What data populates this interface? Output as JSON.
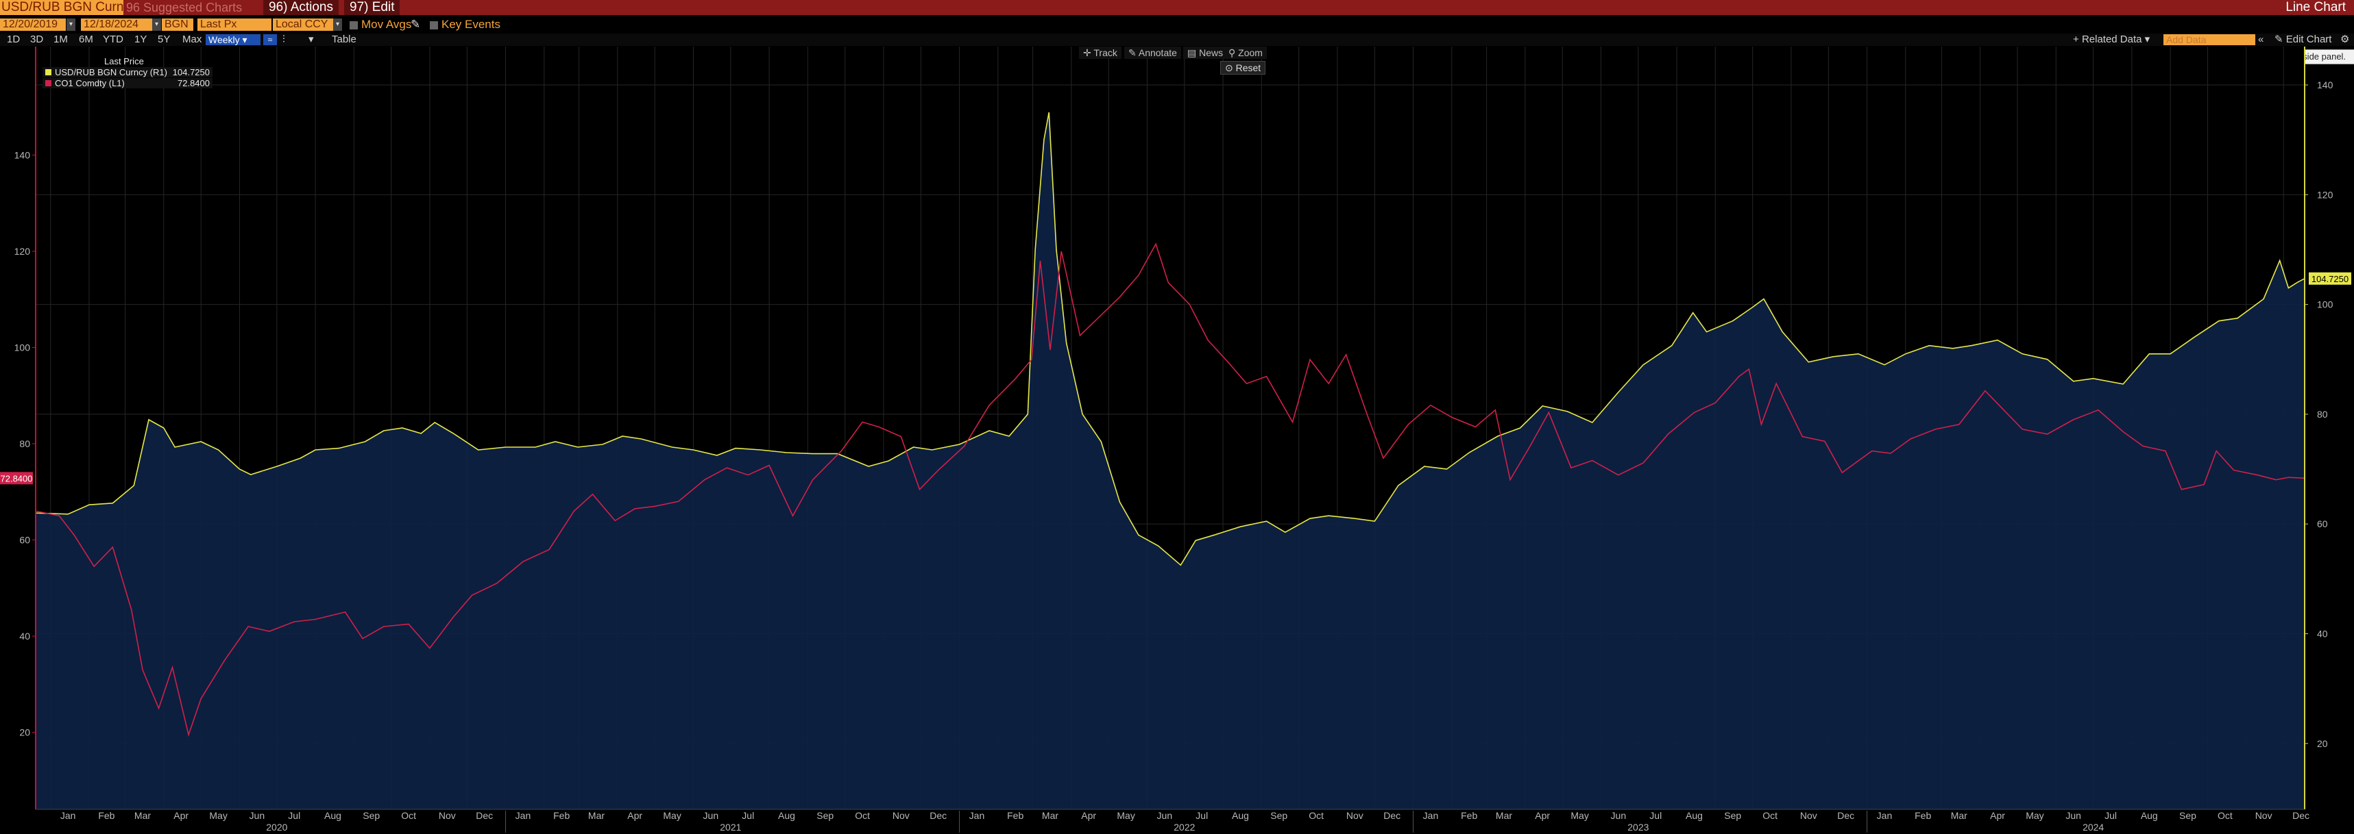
{
  "header": {
    "ticker": "USD/RUB BGN Curnc",
    "suggested_charts": "96 Suggested Charts",
    "actions": "96) Actions",
    "edit": "97) Edit",
    "view_title": "Line Chart"
  },
  "toolbar": {
    "start_date": "12/20/2019",
    "end_date": "12/18/2024",
    "source": "BGN",
    "field": "Last Px",
    "currency": "Local CCY",
    "mov_avgs": "Mov Avgs",
    "key_events": "Key Events",
    "periods": [
      "1D",
      "3D",
      "1M",
      "6M",
      "YTD",
      "1Y",
      "5Y",
      "Max"
    ],
    "frequency": "Weekly",
    "table": "Table",
    "related_data": "Related Data",
    "add_data_placeholder": "Add Data",
    "edit_chart": "Edit Chart",
    "tooltip": "Open the security/study side panel."
  },
  "chart_tools": {
    "track": "Track",
    "annotate": "Annotate",
    "news": "News",
    "zoom": "Zoom",
    "reset": "Reset"
  },
  "legend": {
    "header": "Last Price",
    "entries": [
      {
        "name": "USD/RUB BGN Curncy  (R1)",
        "value": "104.7250",
        "color": "#e8e84a"
      },
      {
        "name": "CO1 Comdty  (L1)",
        "value": "72.8400",
        "color": "#d0204a"
      }
    ]
  },
  "chart_data": {
    "type": "line",
    "y_left": {
      "ticks": [
        20,
        40,
        60,
        80,
        100,
        120,
        140
      ],
      "range": [
        4,
        158
      ],
      "last_label": "72.8400"
    },
    "y_right": {
      "ticks": [
        20,
        40,
        60,
        80,
        100,
        120,
        140
      ],
      "range": [
        8,
        143
      ],
      "last_label": "104.7250"
    },
    "months": [
      "Jan",
      "Feb",
      "Mar",
      "Apr",
      "May",
      "Jun",
      "Jul",
      "Aug",
      "Sep",
      "Oct",
      "Nov",
      "Dec",
      "Jan",
      "Feb",
      "Mar",
      "Apr",
      "May",
      "Jun",
      "Jul",
      "Aug",
      "Sep",
      "Oct",
      "Nov",
      "Dec",
      "Jan",
      "Feb",
      "Mar",
      "Apr",
      "May",
      "Jun",
      "Jul",
      "Aug",
      "Sep",
      "Oct",
      "Nov",
      "Dec",
      "Jan",
      "Feb",
      "Mar",
      "Apr",
      "May",
      "Jun",
      "Jul",
      "Aug",
      "Sep",
      "Oct",
      "Nov",
      "Dec",
      "Jan",
      "Feb",
      "Mar",
      "Apr",
      "May",
      "Jun",
      "Jul",
      "Aug",
      "Sep",
      "Oct",
      "Nov",
      "Dec"
    ],
    "years": [
      "2020",
      "2021",
      "2022",
      "2023",
      "2024"
    ],
    "x_range": [
      "2019-12-20",
      "2024-12-18"
    ],
    "series": [
      {
        "name": "USD/RUB BGN Curncy",
        "axis": "right",
        "color": "#e8e84a",
        "points": [
          [
            "2019-12-20",
            62.0
          ],
          [
            "2020-01-15",
            61.8
          ],
          [
            "2020-02-01",
            63.5
          ],
          [
            "2020-02-20",
            63.8
          ],
          [
            "2020-03-08",
            67.0
          ],
          [
            "2020-03-20",
            79.0
          ],
          [
            "2020-04-01",
            77.5
          ],
          [
            "2020-04-10",
            74.0
          ],
          [
            "2020-05-01",
            75.0
          ],
          [
            "2020-05-15",
            73.5
          ],
          [
            "2020-06-01",
            70.0
          ],
          [
            "2020-06-10",
            69.0
          ],
          [
            "2020-07-01",
            70.5
          ],
          [
            "2020-07-20",
            72.0
          ],
          [
            "2020-08-01",
            73.5
          ],
          [
            "2020-08-20",
            73.8
          ],
          [
            "2020-09-10",
            75.0
          ],
          [
            "2020-09-25",
            77.0
          ],
          [
            "2020-10-10",
            77.5
          ],
          [
            "2020-10-25",
            76.5
          ],
          [
            "2020-11-05",
            78.5
          ],
          [
            "2020-11-20",
            76.5
          ],
          [
            "2020-12-10",
            73.5
          ],
          [
            "2021-01-01",
            74.0
          ],
          [
            "2021-01-25",
            74.0
          ],
          [
            "2021-02-10",
            75.0
          ],
          [
            "2021-02-28",
            74.0
          ],
          [
            "2021-03-20",
            74.5
          ],
          [
            "2021-04-05",
            76.0
          ],
          [
            "2021-04-20",
            75.5
          ],
          [
            "2021-05-15",
            74.0
          ],
          [
            "2021-06-01",
            73.5
          ],
          [
            "2021-06-20",
            72.5
          ],
          [
            "2021-07-05",
            73.8
          ],
          [
            "2021-07-25",
            73.5
          ],
          [
            "2021-08-15",
            73.0
          ],
          [
            "2021-09-05",
            72.8
          ],
          [
            "2021-09-25",
            72.8
          ],
          [
            "2021-10-20",
            70.5
          ],
          [
            "2021-11-05",
            71.5
          ],
          [
            "2021-11-25",
            74.0
          ],
          [
            "2021-12-10",
            73.5
          ],
          [
            "2022-01-01",
            74.5
          ],
          [
            "2022-01-25",
            77.0
          ],
          [
            "2022-02-10",
            76.0
          ],
          [
            "2022-02-25",
            80.0
          ],
          [
            "2022-03-03",
            110.0
          ],
          [
            "2022-03-10",
            130.0
          ],
          [
            "2022-03-14",
            135.0
          ],
          [
            "2022-03-20",
            110.0
          ],
          [
            "2022-03-28",
            93.0
          ],
          [
            "2022-04-10",
            80.0
          ],
          [
            "2022-04-25",
            75.0
          ],
          [
            "2022-05-10",
            64.0
          ],
          [
            "2022-05-25",
            58.0
          ],
          [
            "2022-06-10",
            56.0
          ],
          [
            "2022-06-28",
            52.5
          ],
          [
            "2022-07-10",
            57.0
          ],
          [
            "2022-07-25",
            58.0
          ],
          [
            "2022-08-15",
            59.5
          ],
          [
            "2022-09-05",
            60.5
          ],
          [
            "2022-09-20",
            58.5
          ],
          [
            "2022-10-10",
            61.0
          ],
          [
            "2022-10-25",
            61.5
          ],
          [
            "2022-11-15",
            61.0
          ],
          [
            "2022-12-01",
            60.5
          ],
          [
            "2022-12-20",
            67.0
          ],
          [
            "2023-01-10",
            70.5
          ],
          [
            "2023-01-28",
            70.0
          ],
          [
            "2023-02-15",
            73.0
          ],
          [
            "2023-03-10",
            76.0
          ],
          [
            "2023-03-28",
            77.5
          ],
          [
            "2023-04-15",
            81.5
          ],
          [
            "2023-05-05",
            80.5
          ],
          [
            "2023-05-25",
            78.5
          ],
          [
            "2023-06-15",
            84.0
          ],
          [
            "2023-07-05",
            89.0
          ],
          [
            "2023-07-28",
            92.5
          ],
          [
            "2023-08-14",
            98.5
          ],
          [
            "2023-08-25",
            95.0
          ],
          [
            "2023-09-15",
            97.0
          ],
          [
            "2023-10-01",
            99.5
          ],
          [
            "2023-10-10",
            101.0
          ],
          [
            "2023-10-25",
            95.0
          ],
          [
            "2023-11-15",
            89.5
          ],
          [
            "2023-12-05",
            90.5
          ],
          [
            "2023-12-25",
            91.0
          ],
          [
            "2024-01-15",
            89.0
          ],
          [
            "2024-02-01",
            91.0
          ],
          [
            "2024-02-20",
            92.5
          ],
          [
            "2024-03-10",
            92.0
          ],
          [
            "2024-03-25",
            92.5
          ],
          [
            "2024-04-15",
            93.5
          ],
          [
            "2024-05-05",
            91.0
          ],
          [
            "2024-05-25",
            90.0
          ],
          [
            "2024-06-15",
            86.0
          ],
          [
            "2024-07-01",
            86.5
          ],
          [
            "2024-07-25",
            85.5
          ],
          [
            "2024-08-15",
            91.0
          ],
          [
            "2024-09-01",
            91.0
          ],
          [
            "2024-09-20",
            94.0
          ],
          [
            "2024-10-10",
            97.0
          ],
          [
            "2024-10-25",
            97.5
          ],
          [
            "2024-11-15",
            101.0
          ],
          [
            "2024-11-28",
            108.0
          ],
          [
            "2024-12-05",
            103.0
          ],
          [
            "2024-12-12",
            104.0
          ],
          [
            "2024-12-18",
            104.725
          ]
        ]
      },
      {
        "name": "CO1 Comdty",
        "axis": "left",
        "color": "#d0204a",
        "points": [
          [
            "2019-12-20",
            66.0
          ],
          [
            "2020-01-08",
            65.0
          ],
          [
            "2020-01-20",
            61.0
          ],
          [
            "2020-02-05",
            54.5
          ],
          [
            "2020-02-20",
            58.5
          ],
          [
            "2020-03-06",
            45.5
          ],
          [
            "2020-03-15",
            33.0
          ],
          [
            "2020-03-28",
            25.0
          ],
          [
            "2020-04-08",
            33.5
          ],
          [
            "2020-04-21",
            19.5
          ],
          [
            "2020-05-01",
            27.0
          ],
          [
            "2020-05-20",
            35.0
          ],
          [
            "2020-06-08",
            42.0
          ],
          [
            "2020-06-25",
            41.0
          ],
          [
            "2020-07-15",
            43.0
          ],
          [
            "2020-08-01",
            43.5
          ],
          [
            "2020-08-25",
            45.0
          ],
          [
            "2020-09-08",
            39.5
          ],
          [
            "2020-09-25",
            42.0
          ],
          [
            "2020-10-15",
            42.5
          ],
          [
            "2020-11-01",
            37.5
          ],
          [
            "2020-11-20",
            44.0
          ],
          [
            "2020-12-05",
            48.5
          ],
          [
            "2020-12-25",
            51.0
          ],
          [
            "2021-01-15",
            55.5
          ],
          [
            "2021-02-05",
            58.0
          ],
          [
            "2021-02-25",
            66.0
          ],
          [
            "2021-03-12",
            69.5
          ],
          [
            "2021-03-30",
            64.0
          ],
          [
            "2021-04-15",
            66.5
          ],
          [
            "2021-05-01",
            67.0
          ],
          [
            "2021-05-20",
            68.0
          ],
          [
            "2021-06-10",
            72.5
          ],
          [
            "2021-06-28",
            75.0
          ],
          [
            "2021-07-15",
            73.5
          ],
          [
            "2021-08-01",
            75.5
          ],
          [
            "2021-08-20",
            65.0
          ],
          [
            "2021-09-05",
            72.5
          ],
          [
            "2021-09-28",
            78.5
          ],
          [
            "2021-10-15",
            84.5
          ],
          [
            "2021-10-28",
            83.5
          ],
          [
            "2021-11-15",
            81.5
          ],
          [
            "2021-11-30",
            70.5
          ],
          [
            "2021-12-15",
            74.5
          ],
          [
            "2022-01-05",
            79.5
          ],
          [
            "2022-01-25",
            88.0
          ],
          [
            "2022-02-15",
            93.5
          ],
          [
            "2022-02-28",
            97.5
          ],
          [
            "2022-03-07",
            118.0
          ],
          [
            "2022-03-15",
            99.5
          ],
          [
            "2022-03-24",
            120.0
          ],
          [
            "2022-04-08",
            102.5
          ],
          [
            "2022-04-22",
            106.0
          ],
          [
            "2022-05-10",
            110.5
          ],
          [
            "2022-05-25",
            115.0
          ],
          [
            "2022-06-08",
            121.5
          ],
          [
            "2022-06-18",
            113.5
          ],
          [
            "2022-07-05",
            109.0
          ],
          [
            "2022-07-20",
            101.5
          ],
          [
            "2022-08-05",
            97.0
          ],
          [
            "2022-08-20",
            92.5
          ],
          [
            "2022-09-05",
            94.0
          ],
          [
            "2022-09-26",
            84.5
          ],
          [
            "2022-10-10",
            97.5
          ],
          [
            "2022-10-25",
            92.5
          ],
          [
            "2022-11-08",
            98.5
          ],
          [
            "2022-11-25",
            86.0
          ],
          [
            "2022-12-08",
            77.0
          ],
          [
            "2022-12-28",
            84.0
          ],
          [
            "2023-01-15",
            88.0
          ],
          [
            "2023-02-01",
            85.5
          ],
          [
            "2023-02-20",
            83.5
          ],
          [
            "2023-03-08",
            87.0
          ],
          [
            "2023-03-20",
            72.5
          ],
          [
            "2023-04-05",
            79.5
          ],
          [
            "2023-04-20",
            86.5
          ],
          [
            "2023-05-08",
            75.0
          ],
          [
            "2023-05-25",
            76.5
          ],
          [
            "2023-06-15",
            73.5
          ],
          [
            "2023-07-05",
            76.0
          ],
          [
            "2023-07-25",
            82.0
          ],
          [
            "2023-08-15",
            86.5
          ],
          [
            "2023-09-01",
            88.5
          ],
          [
            "2023-09-20",
            94.0
          ],
          [
            "2023-09-28",
            95.5
          ],
          [
            "2023-10-08",
            84.0
          ],
          [
            "2023-10-20",
            92.5
          ],
          [
            "2023-11-10",
            81.5
          ],
          [
            "2023-11-28",
            80.5
          ],
          [
            "2023-12-12",
            74.0
          ],
          [
            "2024-01-05",
            78.5
          ],
          [
            "2024-01-20",
            78.0
          ],
          [
            "2024-02-05",
            81.0
          ],
          [
            "2024-02-25",
            83.0
          ],
          [
            "2024-03-15",
            84.0
          ],
          [
            "2024-04-05",
            91.0
          ],
          [
            "2024-04-20",
            87.0
          ],
          [
            "2024-05-05",
            83.0
          ],
          [
            "2024-05-25",
            82.0
          ],
          [
            "2024-06-15",
            85.0
          ],
          [
            "2024-07-05",
            87.0
          ],
          [
            "2024-07-25",
            82.5
          ],
          [
            "2024-08-10",
            79.5
          ],
          [
            "2024-08-28",
            78.5
          ],
          [
            "2024-09-10",
            70.5
          ],
          [
            "2024-09-28",
            71.5
          ],
          [
            "2024-10-08",
            78.5
          ],
          [
            "2024-10-22",
            74.5
          ],
          [
            "2024-11-10",
            73.5
          ],
          [
            "2024-11-25",
            72.5
          ],
          [
            "2024-12-05",
            73.0
          ],
          [
            "2024-12-18",
            72.84
          ]
        ]
      }
    ],
    "grid": true,
    "legend_position": "top-left"
  }
}
